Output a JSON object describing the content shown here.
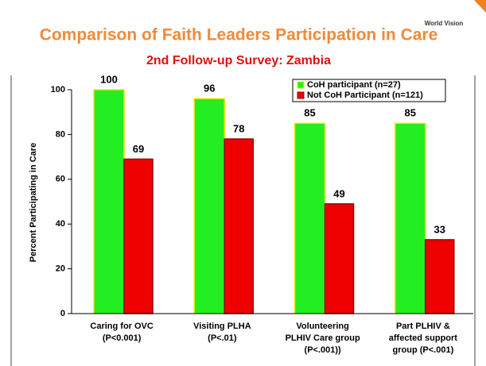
{
  "chart_data": {
    "type": "bar",
    "title": "Comparison of Faith Leaders Participation in Care",
    "subtitle": "2nd Follow-up Survey: Zambia",
    "logo": "World Vision",
    "ylabel": "Percent Participating in Care",
    "categories": [
      [
        "Caring for OVC",
        "(P<0.001)"
      ],
      [
        "Visiting PLHA",
        "(P<.01)"
      ],
      [
        "Volunteering",
        "PLHIV Care group",
        "(P<.001))"
      ],
      [
        "Part PLHIV &",
        "affected support",
        "group (P<.001)"
      ]
    ],
    "series": [
      {
        "name": "CoH participant (n=27)",
        "color": "#22ee22",
        "edge": "#e8e800",
        "values": [
          100,
          96,
          85,
          85
        ]
      },
      {
        "name": "Not CoH Participant (n=121)",
        "color": "#ee0000",
        "edge": "#990000",
        "values": [
          69,
          78,
          49,
          33
        ]
      }
    ],
    "ylim": [
      0,
      100
    ],
    "yticks": [
      0,
      20,
      40,
      60,
      80,
      100
    ]
  }
}
